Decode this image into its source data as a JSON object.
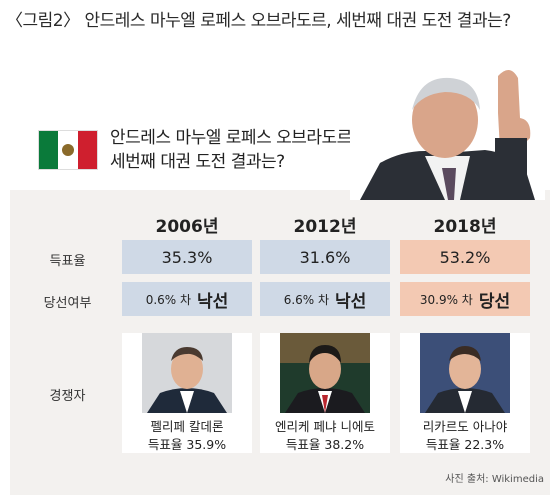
{
  "title": "〈그림2〉 안드레스 마누엘 로페스 오브라도르, 세번째 대권 도전 결과는?",
  "headline": [
    "안드레스 마누엘 로페스 오브라도르,",
    "세번째 대권 도전 결과는?"
  ],
  "years": [
    "2006년",
    "2012년",
    "2018년"
  ],
  "row_labels": {
    "vote_share": "득표율",
    "result": "당선여부",
    "rival": "경쟁자"
  },
  "vote_share": [
    "35.3%",
    "31.6%",
    "53.2%"
  ],
  "result": [
    {
      "margin": "0.6% 차",
      "outcome": "낙선"
    },
    {
      "margin": "6.6% 차",
      "outcome": "낙선"
    },
    {
      "margin": "30.9% 차",
      "outcome": "당선"
    }
  ],
  "rivals": [
    {
      "name": "펠리페 칼데론",
      "vote": "득표율 35.9%"
    },
    {
      "name": "엔리케 페냐 니에토",
      "vote": "득표율 38.2%"
    },
    {
      "name": "리카르도 아나야",
      "vote": "득표율 22.3%"
    }
  ],
  "source": "사진 출처: Wikimedia",
  "colors": {
    "losing_cell": "#cfd9e6",
    "winning_cell": "#f3c9b3",
    "panel": "#f3f1ef"
  },
  "icons": [
    "mexico-flag-icon"
  ]
}
